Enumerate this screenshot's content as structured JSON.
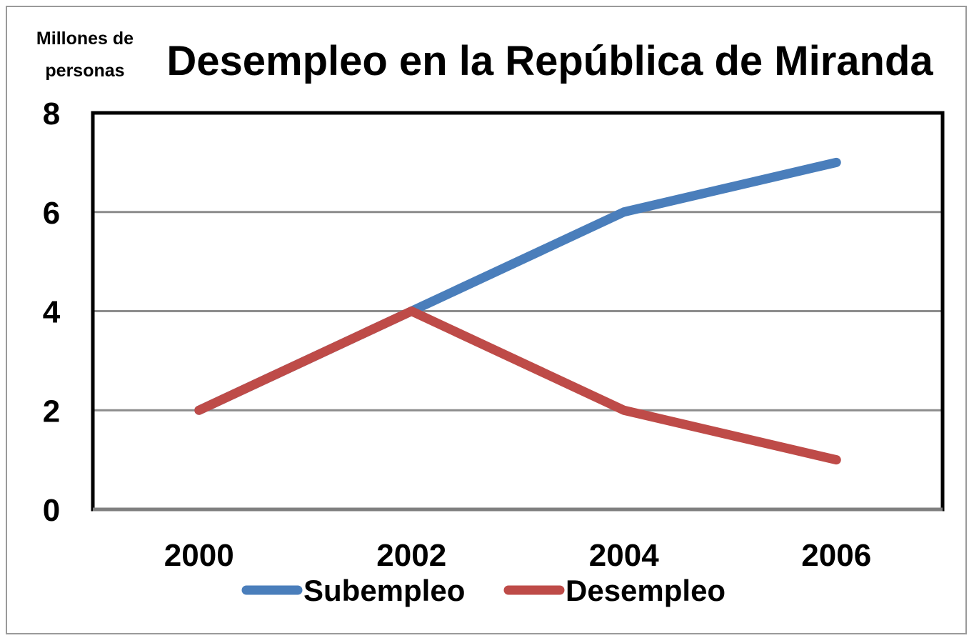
{
  "chart_data": {
    "type": "line",
    "title": "Desempleo en la República de Miranda",
    "ylabel": "Millones de personas",
    "xlabel": "",
    "categories": [
      "2000",
      "2002",
      "2004",
      "2006"
    ],
    "ylim": [
      0,
      8
    ],
    "yticks": [
      "0",
      "2",
      "4",
      "6",
      "8"
    ],
    "yticks_values": [
      0,
      2,
      4,
      6,
      8
    ],
    "grid": true,
    "legend_position": "bottom",
    "series": [
      {
        "name": "Subempleo",
        "color": "#4a7ebb",
        "values": [
          2,
          4,
          6,
          7
        ]
      },
      {
        "name": "Desempleo",
        "color": "#be4b48",
        "values": [
          2,
          4,
          2,
          1
        ]
      }
    ]
  }
}
